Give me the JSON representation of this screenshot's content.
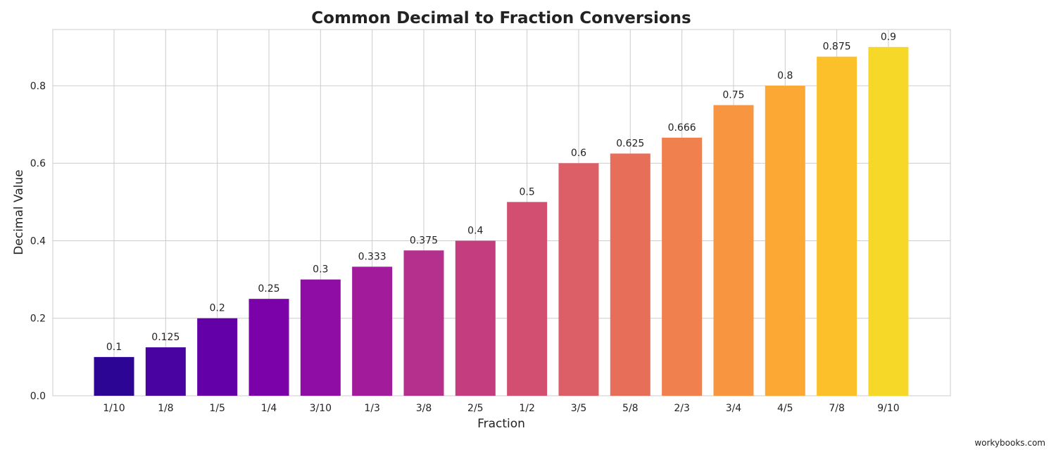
{
  "chart_data": {
    "type": "bar",
    "title": "Common Decimal to Fraction Conversions",
    "xlabel": "Fraction",
    "ylabel": "Decimal Value",
    "categories": [
      "1/10",
      "1/8",
      "1/5",
      "1/4",
      "3/10",
      "1/3",
      "3/8",
      "2/5",
      "1/2",
      "3/5",
      "5/8",
      "2/3",
      "3/4",
      "4/5",
      "7/8",
      "9/10"
    ],
    "values": [
      0.1,
      0.125,
      0.2,
      0.25,
      0.3,
      0.333,
      0.375,
      0.4,
      0.5,
      0.6,
      0.625,
      0.666,
      0.75,
      0.8,
      0.875,
      0.9
    ],
    "data_labels": [
      "0.1",
      "0.125",
      "0.2",
      "0.25",
      "0.3",
      "0.333",
      "0.375",
      "0.4",
      "0.5",
      "0.6",
      "0.625",
      "0.666",
      "0.75",
      "0.8",
      "0.875",
      "0.9"
    ],
    "ylim": [
      0,
      0.945
    ],
    "yticks": [
      0.0,
      0.2,
      0.4,
      0.6,
      0.8
    ],
    "ytick_labels": [
      "0.0",
      "0.2",
      "0.4",
      "0.6",
      "0.8"
    ],
    "grid": true,
    "colors": [
      "#2d0594",
      "#4903a0",
      "#6300a7",
      "#7b02a8",
      "#8f0da4",
      "#a11b9b",
      "#b52f8c",
      "#c43e7f",
      "#d24f71",
      "#dc5e66",
      "#e76f5a",
      "#f0804e",
      "#f89540",
      "#fca835",
      "#fcc12a",
      "#f6d928"
    ]
  },
  "watermark": "workybooks.com"
}
